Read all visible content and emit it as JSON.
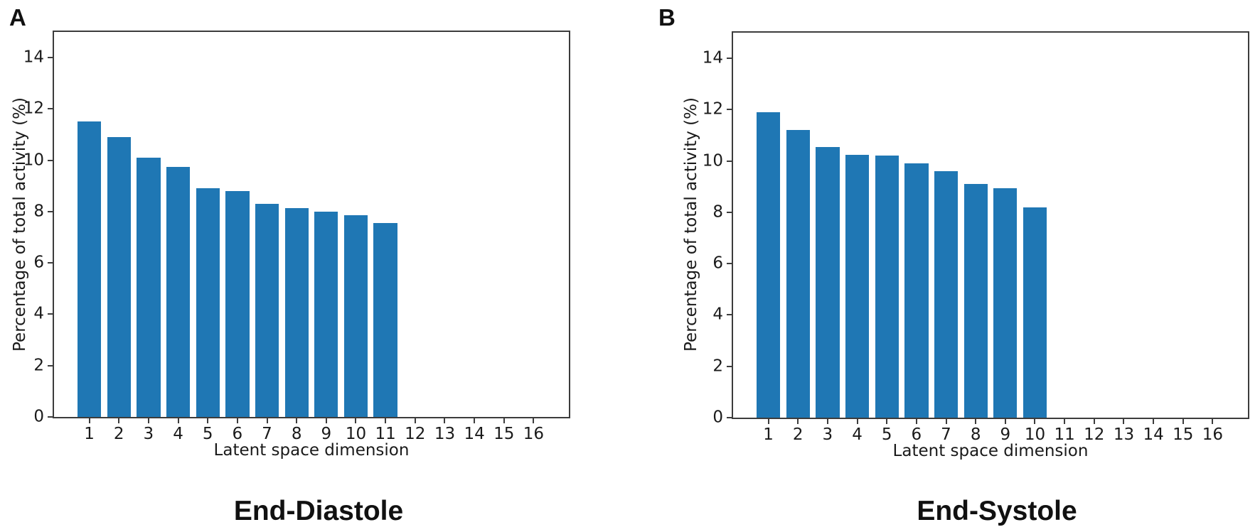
{
  "figure": {
    "bar_color": "#1f77b4",
    "axis_color": "#3c3c3c",
    "text_color": "#1a1a1a"
  },
  "panels": [
    {
      "corner_label": "A",
      "title": "End-Diastole",
      "xlabel": "Latent space dimension",
      "ylabel": "Percentage of total activity (%)",
      "chart_data": {
        "type": "bar",
        "categories": [
          "1",
          "2",
          "3",
          "4",
          "5",
          "6",
          "7",
          "8",
          "9",
          "10",
          "11",
          "12",
          "13",
          "14",
          "15",
          "16"
        ],
        "values": [
          11.5,
          10.9,
          10.1,
          9.75,
          8.9,
          8.8,
          8.3,
          8.15,
          8.0,
          7.85,
          7.55,
          null,
          null,
          null,
          null,
          null
        ],
        "yticks": [
          0,
          2,
          4,
          6,
          8,
          10,
          12,
          14
        ],
        "ylim": [
          0,
          15
        ],
        "xlim": [
          -0.19,
          17.19
        ],
        "bar_width": 0.8,
        "grid": false,
        "legend": null
      }
    },
    {
      "corner_label": "B",
      "title": "End-Systole",
      "xlabel": "Latent space dimension",
      "ylabel": "Percentage of total activity (%)",
      "chart_data": {
        "type": "bar",
        "categories": [
          "1",
          "2",
          "3",
          "4",
          "5",
          "6",
          "7",
          "8",
          "9",
          "10",
          "11",
          "12",
          "13",
          "14",
          "15",
          "16"
        ],
        "values": [
          11.9,
          11.2,
          10.55,
          10.25,
          10.2,
          9.9,
          9.6,
          9.1,
          8.95,
          8.2,
          null,
          null,
          null,
          null,
          null,
          null
        ],
        "yticks": [
          0,
          2,
          4,
          6,
          8,
          10,
          12,
          14
        ],
        "ylim": [
          0,
          15
        ],
        "xlim": [
          -0.19,
          17.19
        ],
        "bar_width": 0.8,
        "grid": false,
        "legend": null
      }
    }
  ]
}
